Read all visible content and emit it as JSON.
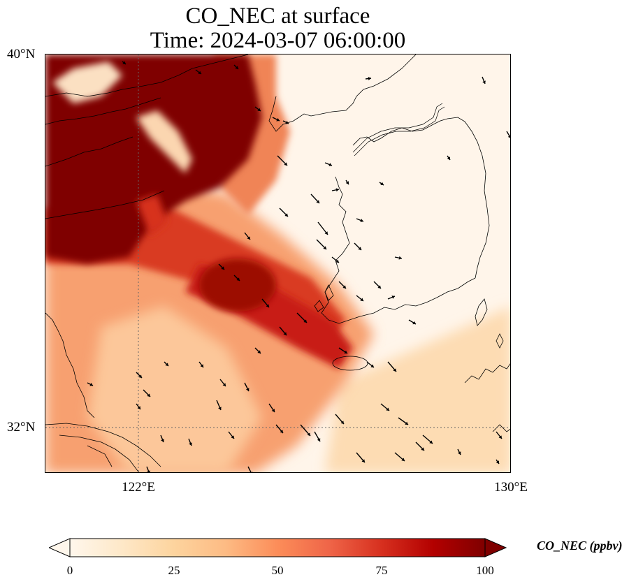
{
  "title_line1": "CO_NEC at surface",
  "title_line2": "Time: 2024-03-07 06:00:00",
  "lat_labels": {
    "top": "40°N",
    "bottom": "32°N"
  },
  "lon_labels": {
    "left": "122°E",
    "right": "130°E"
  },
  "extent": {
    "lon_min": 120,
    "lon_max": 130,
    "lat_min": 31,
    "lat_max": 40
  },
  "colorbar": {
    "label": "CO_NEC (ppbv)",
    "ticks": [
      "0",
      "25",
      "50",
      "75",
      "100"
    ],
    "min": 0,
    "max": 100,
    "colormap": "OrRd",
    "colors": [
      "#fff7ec",
      "#fee8c8",
      "#fdd49e",
      "#fdbb84",
      "#fc8d59",
      "#ef6548",
      "#d7301f",
      "#b30000",
      "#7f0000"
    ]
  },
  "graticule": {
    "lon": 122,
    "lat": 32
  }
}
